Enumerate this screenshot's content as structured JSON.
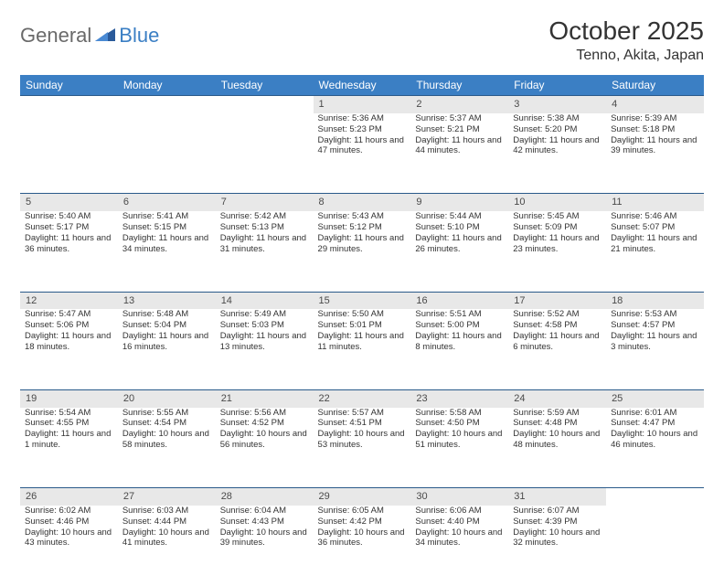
{
  "brand": {
    "part1": "General",
    "part2": "Blue"
  },
  "title": "October 2025",
  "location": "Tenno, Akita, Japan",
  "colors": {
    "header_bg": "#3b7fc4",
    "header_text": "#ffffff",
    "daynum_bg": "#e8e8e8",
    "border": "#2a5a8a",
    "text": "#333333"
  },
  "dayHeaders": [
    "Sunday",
    "Monday",
    "Tuesday",
    "Wednesday",
    "Thursday",
    "Friday",
    "Saturday"
  ],
  "weeks": [
    [
      null,
      null,
      null,
      {
        "n": "1",
        "sr": "5:36 AM",
        "ss": "5:23 PM",
        "dl": "11 hours and 47 minutes."
      },
      {
        "n": "2",
        "sr": "5:37 AM",
        "ss": "5:21 PM",
        "dl": "11 hours and 44 minutes."
      },
      {
        "n": "3",
        "sr": "5:38 AM",
        "ss": "5:20 PM",
        "dl": "11 hours and 42 minutes."
      },
      {
        "n": "4",
        "sr": "5:39 AM",
        "ss": "5:18 PM",
        "dl": "11 hours and 39 minutes."
      }
    ],
    [
      {
        "n": "5",
        "sr": "5:40 AM",
        "ss": "5:17 PM",
        "dl": "11 hours and 36 minutes."
      },
      {
        "n": "6",
        "sr": "5:41 AM",
        "ss": "5:15 PM",
        "dl": "11 hours and 34 minutes."
      },
      {
        "n": "7",
        "sr": "5:42 AM",
        "ss": "5:13 PM",
        "dl": "11 hours and 31 minutes."
      },
      {
        "n": "8",
        "sr": "5:43 AM",
        "ss": "5:12 PM",
        "dl": "11 hours and 29 minutes."
      },
      {
        "n": "9",
        "sr": "5:44 AM",
        "ss": "5:10 PM",
        "dl": "11 hours and 26 minutes."
      },
      {
        "n": "10",
        "sr": "5:45 AM",
        "ss": "5:09 PM",
        "dl": "11 hours and 23 minutes."
      },
      {
        "n": "11",
        "sr": "5:46 AM",
        "ss": "5:07 PM",
        "dl": "11 hours and 21 minutes."
      }
    ],
    [
      {
        "n": "12",
        "sr": "5:47 AM",
        "ss": "5:06 PM",
        "dl": "11 hours and 18 minutes."
      },
      {
        "n": "13",
        "sr": "5:48 AM",
        "ss": "5:04 PM",
        "dl": "11 hours and 16 minutes."
      },
      {
        "n": "14",
        "sr": "5:49 AM",
        "ss": "5:03 PM",
        "dl": "11 hours and 13 minutes."
      },
      {
        "n": "15",
        "sr": "5:50 AM",
        "ss": "5:01 PM",
        "dl": "11 hours and 11 minutes."
      },
      {
        "n": "16",
        "sr": "5:51 AM",
        "ss": "5:00 PM",
        "dl": "11 hours and 8 minutes."
      },
      {
        "n": "17",
        "sr": "5:52 AM",
        "ss": "4:58 PM",
        "dl": "11 hours and 6 minutes."
      },
      {
        "n": "18",
        "sr": "5:53 AM",
        "ss": "4:57 PM",
        "dl": "11 hours and 3 minutes."
      }
    ],
    [
      {
        "n": "19",
        "sr": "5:54 AM",
        "ss": "4:55 PM",
        "dl": "11 hours and 1 minute."
      },
      {
        "n": "20",
        "sr": "5:55 AM",
        "ss": "4:54 PM",
        "dl": "10 hours and 58 minutes."
      },
      {
        "n": "21",
        "sr": "5:56 AM",
        "ss": "4:52 PM",
        "dl": "10 hours and 56 minutes."
      },
      {
        "n": "22",
        "sr": "5:57 AM",
        "ss": "4:51 PM",
        "dl": "10 hours and 53 minutes."
      },
      {
        "n": "23",
        "sr": "5:58 AM",
        "ss": "4:50 PM",
        "dl": "10 hours and 51 minutes."
      },
      {
        "n": "24",
        "sr": "5:59 AM",
        "ss": "4:48 PM",
        "dl": "10 hours and 48 minutes."
      },
      {
        "n": "25",
        "sr": "6:01 AM",
        "ss": "4:47 PM",
        "dl": "10 hours and 46 minutes."
      }
    ],
    [
      {
        "n": "26",
        "sr": "6:02 AM",
        "ss": "4:46 PM",
        "dl": "10 hours and 43 minutes."
      },
      {
        "n": "27",
        "sr": "6:03 AM",
        "ss": "4:44 PM",
        "dl": "10 hours and 41 minutes."
      },
      {
        "n": "28",
        "sr": "6:04 AM",
        "ss": "4:43 PM",
        "dl": "10 hours and 39 minutes."
      },
      {
        "n": "29",
        "sr": "6:05 AM",
        "ss": "4:42 PM",
        "dl": "10 hours and 36 minutes."
      },
      {
        "n": "30",
        "sr": "6:06 AM",
        "ss": "4:40 PM",
        "dl": "10 hours and 34 minutes."
      },
      {
        "n": "31",
        "sr": "6:07 AM",
        "ss": "4:39 PM",
        "dl": "10 hours and 32 minutes."
      },
      null
    ]
  ],
  "labels": {
    "sunrise": "Sunrise:",
    "sunset": "Sunset:",
    "daylight": "Daylight:"
  }
}
